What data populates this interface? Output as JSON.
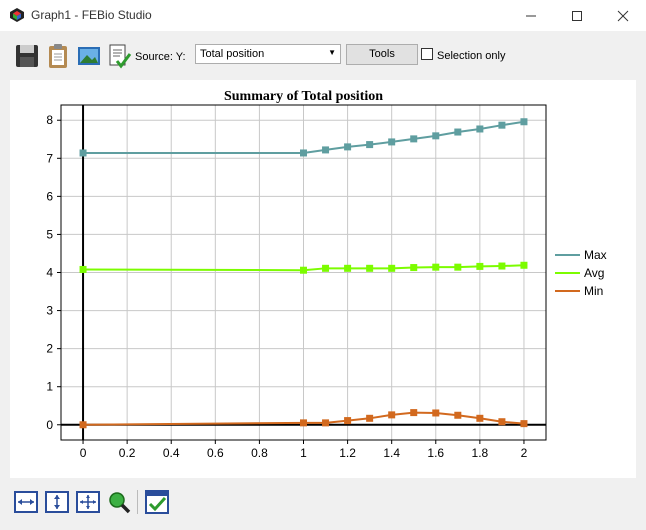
{
  "window": {
    "title": "Graph1 - FEBio Studio"
  },
  "toolbar": {
    "source_label": "Source: Y:",
    "source_value": "Total position",
    "tools_label": "Tools",
    "selection_only_label": "Selection only",
    "selection_only_checked": false
  },
  "icons": [
    "app-logo-icon",
    "save-icon",
    "copy-clipboard-icon",
    "image-snapshot-icon",
    "export-data-icon",
    "fit-width-icon",
    "fit-height-icon",
    "fit-all-icon",
    "zoom-icon",
    "select-check-icon"
  ],
  "chart_data": {
    "type": "line",
    "title": "Summary of Total position",
    "xlabel": "",
    "ylabel": "",
    "xlim": [
      -0.1,
      2.1
    ],
    "ylim": [
      -0.4,
      8.4
    ],
    "xticks": [
      "0",
      "0.2",
      "0.4",
      "0.6",
      "0.8",
      "1",
      "1.2",
      "1.4",
      "1.6",
      "1.8",
      "2"
    ],
    "yticks": [
      "0",
      "1",
      "2",
      "3",
      "4",
      "5",
      "6",
      "7",
      "8"
    ],
    "grid": true,
    "legend_position": "right",
    "x": [
      0,
      1,
      1.1,
      1.2,
      1.3,
      1.4,
      1.5,
      1.6,
      1.7,
      1.8,
      1.9,
      2
    ],
    "series": [
      {
        "name": "Max",
        "color": "#5f9ea0",
        "values": [
          7.14,
          7.14,
          7.22,
          7.3,
          7.36,
          7.43,
          7.51,
          7.59,
          7.69,
          7.77,
          7.87,
          7.96
        ]
      },
      {
        "name": "Avg",
        "color": "#7cfc00",
        "values": [
          4.08,
          4.06,
          4.11,
          4.11,
          4.11,
          4.11,
          4.13,
          4.14,
          4.14,
          4.16,
          4.17,
          4.19
        ]
      },
      {
        "name": "Min",
        "color": "#d2691e",
        "values": [
          0.0,
          0.05,
          0.05,
          0.11,
          0.17,
          0.26,
          0.32,
          0.31,
          0.25,
          0.17,
          0.08,
          0.03
        ]
      }
    ]
  }
}
